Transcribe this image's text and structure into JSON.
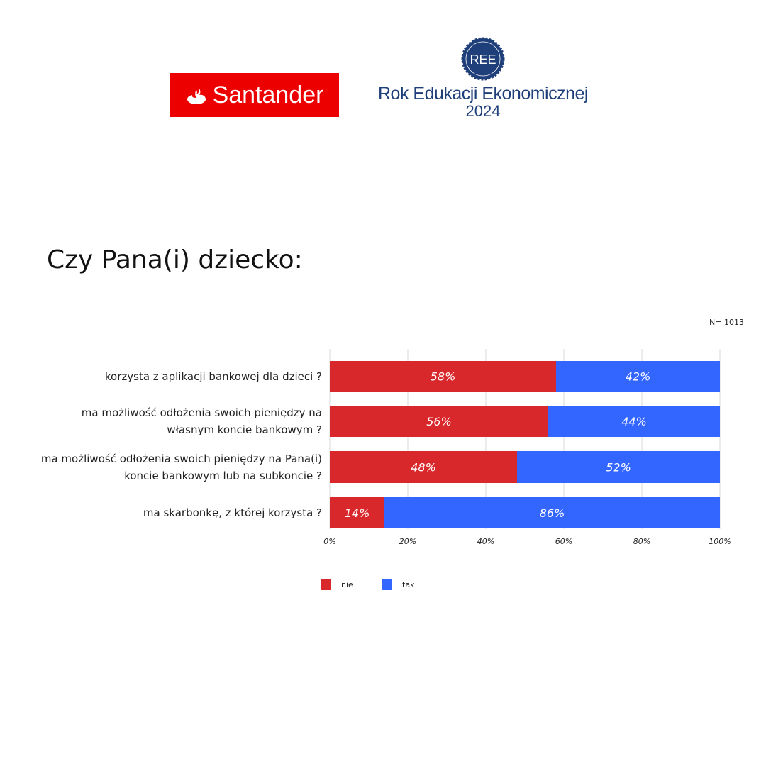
{
  "logos": {
    "santander": "Santander",
    "ree_badge": "REE",
    "ree_title": "Rok Edukacji Ekonomicznej",
    "ree_year": "2024"
  },
  "title": "Czy Pana(i) dziecko:",
  "sample_size": "N= 1013",
  "chart_data": {
    "type": "bar",
    "orientation": "horizontal",
    "stacked": "100%",
    "categories": [
      [
        "korzysta z aplikacji bankowej dla dzieci ?"
      ],
      [
        "ma możliwość odłożenia swoich pieniędzy na",
        "własnym koncie bankowym ?"
      ],
      [
        "ma możliwość odłożenia swoich pieniędzy na Pana(i)",
        "koncie bankowym lub na subkoncie ?"
      ],
      [
        "ma skarbonkę, z której korzysta ?"
      ]
    ],
    "series": [
      {
        "name": "nie",
        "color": "#d9282b",
        "values": [
          58,
          56,
          48,
          14
        ],
        "labels": [
          "58%",
          "56%",
          "48%",
          "14%"
        ]
      },
      {
        "name": "tak",
        "color": "#3366ff",
        "values": [
          42,
          44,
          52,
          86
        ],
        "labels": [
          "42%",
          "44%",
          "52%",
          "86%"
        ]
      }
    ],
    "xlim": [
      0,
      100
    ],
    "xticks": [
      "0%",
      "20%",
      "40%",
      "60%",
      "80%",
      "100%"
    ],
    "grid": true,
    "legend_position": "bottom"
  }
}
